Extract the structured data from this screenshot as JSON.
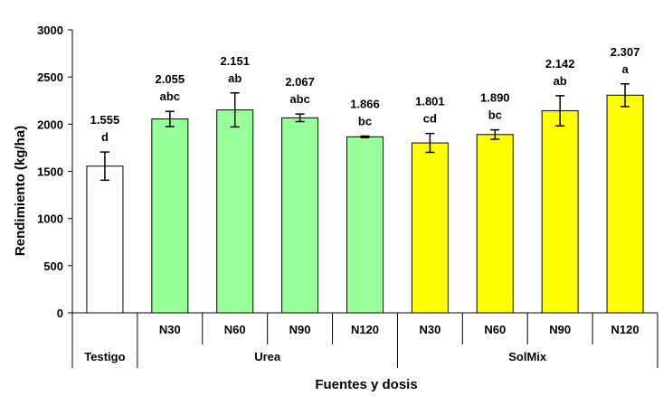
{
  "chart_data": {
    "type": "bar",
    "xlabel": "Fuentes y dosis",
    "ylabel": "Rendimiento (kg/ha)",
    "ylim": [
      0,
      3000
    ],
    "yticks": [
      0,
      500,
      1000,
      1500,
      2000,
      2500,
      3000
    ],
    "grid": false,
    "categories": [
      "Testigo",
      "N30",
      "N60",
      "N90",
      "N120",
      "N30",
      "N60",
      "N90",
      "N120"
    ],
    "groups": [
      {
        "label": "Testigo",
        "start": 0,
        "end": 0
      },
      {
        "label": "Urea",
        "start": 1,
        "end": 4
      },
      {
        "label": "SolMix",
        "start": 5,
        "end": 8
      }
    ],
    "values": [
      1555,
      2055,
      2151,
      2067,
      1866,
      1801,
      1890,
      2142,
      2307
    ],
    "errors": [
      150,
      80,
      180,
      40,
      8,
      100,
      50,
      160,
      120
    ],
    "value_labels": [
      "1.555",
      "2.055",
      "2.151",
      "2.067",
      "1.866",
      "1.801",
      "1.890",
      "2.142",
      "2.307"
    ],
    "letters": [
      "d",
      "abc",
      "ab",
      "abc",
      "bc",
      "cd",
      "bc",
      "ab",
      "a"
    ],
    "colors": [
      "#ffffff",
      "#99ff99",
      "#99ff99",
      "#99ff99",
      "#99ff99",
      "#ffff00",
      "#ffff00",
      "#ffff00",
      "#ffff00"
    ]
  }
}
